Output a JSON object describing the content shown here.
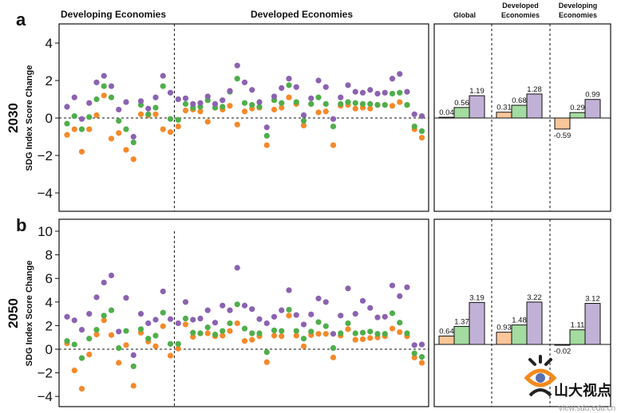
{
  "colors": {
    "orange": "#f5892a",
    "green": "#4fae4b",
    "purple": "#8b62b0",
    "bar_orange": "#fbc699",
    "bar_green": "#a4dba0",
    "bar_purple": "#c2b1d7"
  },
  "chart_data": [
    {
      "type": "scatter",
      "panel_label": "a",
      "row_label": "2030",
      "ylabel": "SDG Index Score Change",
      "group_labels": [
        "Developing Economies",
        "Developed Economies"
      ],
      "ylim": [
        -5,
        5
      ],
      "yticks": [
        4,
        2,
        0,
        -2,
        -4
      ],
      "ytick_labels": [
        "4",
        "2",
        "0",
        "−2",
        "−4"
      ],
      "zero_line": true,
      "developing_count": 15,
      "series": [
        {
          "name": "purple",
          "values": [
            0.6,
            1.1,
            -0.05,
            0.8,
            1.9,
            2.25,
            1.7,
            0.45,
            0.85,
            -1.0,
            0.9,
            0.5,
            1.1,
            2.25,
            1.35,
            1.0,
            1.05,
            0.75,
            0.8,
            1.15,
            0.75,
            0.95,
            1.45,
            2.8,
            1.9,
            1.5,
            0.85,
            -0.5,
            1.15,
            1.6,
            2.1,
            1.65,
            0.15,
            1.05,
            2.0,
            1.65,
            -0.05,
            1.1,
            1.75,
            1.4,
            1.35,
            1.5,
            1.3,
            1.35,
            2.1,
            2.35,
            1.4,
            0.2,
            0.1
          ]
        },
        {
          "name": "green",
          "values": [
            -0.3,
            0.1,
            -0.6,
            0.05,
            1.0,
            1.7,
            1.1,
            -0.15,
            -0.6,
            -1.3,
            0.7,
            0.2,
            0.55,
            1.7,
            -0.05,
            -0.1,
            0.75,
            0.55,
            0.6,
            0.95,
            0.55,
            0.6,
            1.4,
            2.1,
            0.8,
            0.7,
            0.6,
            -0.95,
            0.95,
            0.8,
            1.75,
            0.85,
            -0.15,
            0.75,
            1.1,
            0.75,
            -0.45,
            0.75,
            0.85,
            0.8,
            0.75,
            0.75,
            0.7,
            0.7,
            1.3,
            1.35,
            0.7,
            -0.45,
            -0.7
          ]
        },
        {
          "name": "orange",
          "values": [
            -0.9,
            -0.6,
            -1.8,
            -0.6,
            0.15,
            1.2,
            -1.1,
            -0.8,
            -1.7,
            -2.2,
            0.2,
            0.15,
            0.2,
            -0.6,
            -0.75,
            -0.45,
            0.4,
            0.45,
            0.35,
            -0.2,
            0.55,
            0.45,
            0.65,
            -0.35,
            0.35,
            0.5,
            0.55,
            -1.45,
            0.45,
            0.55,
            1.1,
            0.75,
            -0.4,
            0.75,
            0.3,
            0.35,
            -1.45,
            0.65,
            0.7,
            0.5,
            0.55,
            0.5,
            0.7,
            0.7,
            0.65,
            0.85,
            0.7,
            -0.6,
            -1.05
          ]
        }
      ]
    },
    {
      "type": "scatter",
      "panel_label": "b",
      "row_label": "2050",
      "ylabel": "SDG Index Score Change",
      "ylim": [
        -5,
        11
      ],
      "yticks": [
        10,
        8,
        6,
        4,
        2,
        0,
        -2,
        -4
      ],
      "ytick_labels": [
        "10",
        "8",
        "6",
        "4",
        "2",
        "0",
        "−2",
        "−4"
      ],
      "zero_line": true,
      "developing_count": 15,
      "series": [
        {
          "name": "purple",
          "values": [
            2.75,
            2.45,
            1.65,
            3.0,
            4.4,
            5.65,
            6.25,
            1.5,
            4.35,
            -0.5,
            3.0,
            2.2,
            2.5,
            4.9,
            2.55,
            2.2,
            4.0,
            2.5,
            2.6,
            3.3,
            2.25,
            3.7,
            3.3,
            6.9,
            3.7,
            3.4,
            2.55,
            2.2,
            2.75,
            3.3,
            5.0,
            2.9,
            2.1,
            2.95,
            4.3,
            4.0,
            1.3,
            2.85,
            5.15,
            3.0,
            4.1,
            3.5,
            2.7,
            2.75,
            5.4,
            4.5,
            5.25,
            0.35,
            0.4
          ]
        },
        {
          "name": "green",
          "values": [
            0.7,
            0.4,
            -0.75,
            0.9,
            1.65,
            2.85,
            3.3,
            0.1,
            1.55,
            -1.45,
            1.7,
            0.9,
            1.15,
            3.1,
            0.45,
            0.45,
            2.6,
            1.4,
            1.35,
            1.85,
            1.25,
            1.55,
            2.2,
            3.8,
            1.75,
            1.35,
            1.35,
            -0.25,
            1.6,
            1.55,
            3.35,
            1.55,
            0.9,
            1.5,
            2.3,
            1.95,
            0.1,
            1.35,
            2.2,
            1.35,
            1.4,
            1.5,
            1.3,
            1.3,
            3.05,
            2.25,
            1.35,
            -0.35,
            -0.65
          ]
        },
        {
          "name": "orange",
          "values": [
            0.5,
            -1.8,
            -3.35,
            -0.45,
            1.25,
            2.45,
            1.2,
            -1.15,
            0.35,
            -3.1,
            1.4,
            0.65,
            0.25,
            1.95,
            -0.55,
            0.05,
            2.1,
            1.05,
            1.35,
            1.35,
            1.1,
            1.15,
            1.55,
            2.2,
            0.7,
            0.8,
            1.1,
            -1.1,
            1.15,
            1.1,
            2.85,
            1.15,
            0.25,
            1.2,
            1.3,
            1.3,
            -0.7,
            1.15,
            1.7,
            0.8,
            0.85,
            0.95,
            1.0,
            1.1,
            1.75,
            1.45,
            1.1,
            -0.7,
            -1.15
          ]
        }
      ]
    },
    {
      "type": "bar",
      "panel": "a-summary",
      "categories": [
        "Global",
        "Developed Economies",
        "Developing Economies"
      ],
      "category_lines": [
        [
          "Global"
        ],
        [
          "Developed",
          "Economies"
        ],
        [
          "Developing",
          "Economies"
        ]
      ],
      "ylim": [
        -5,
        5
      ],
      "series": [
        {
          "name": "orange",
          "values": [
            0.04,
            0.31,
            -0.59
          ],
          "labels": [
            "0.04",
            "0.31",
            "-0.59"
          ]
        },
        {
          "name": "green",
          "values": [
            0.56,
            0.68,
            0.29
          ],
          "labels": [
            "0.56",
            "0.68",
            "0.29"
          ]
        },
        {
          "name": "purple",
          "values": [
            1.19,
            1.28,
            0.99
          ],
          "labels": [
            "1.19",
            "1.28",
            "0.99"
          ]
        }
      ]
    },
    {
      "type": "bar",
      "panel": "b-summary",
      "categories": [
        "Global",
        "Developed Economies",
        "Developing Economies"
      ],
      "ylim": [
        -5,
        11
      ],
      "series": [
        {
          "name": "orange",
          "values": [
            0.64,
            0.93,
            -0.02
          ],
          "labels": [
            "0.64",
            "0.93",
            "-0.02"
          ]
        },
        {
          "name": "green",
          "values": [
            1.37,
            1.48,
            1.11
          ],
          "labels": [
            "1.37",
            "1.48",
            "1.11"
          ]
        },
        {
          "name": "purple",
          "values": [
            3.19,
            3.22,
            3.12
          ],
          "labels": [
            "3.19",
            "3.22",
            "3.12"
          ]
        }
      ]
    }
  ],
  "watermark": {
    "text": "山大视点",
    "url_text": "view.sdu.edu.cn"
  }
}
